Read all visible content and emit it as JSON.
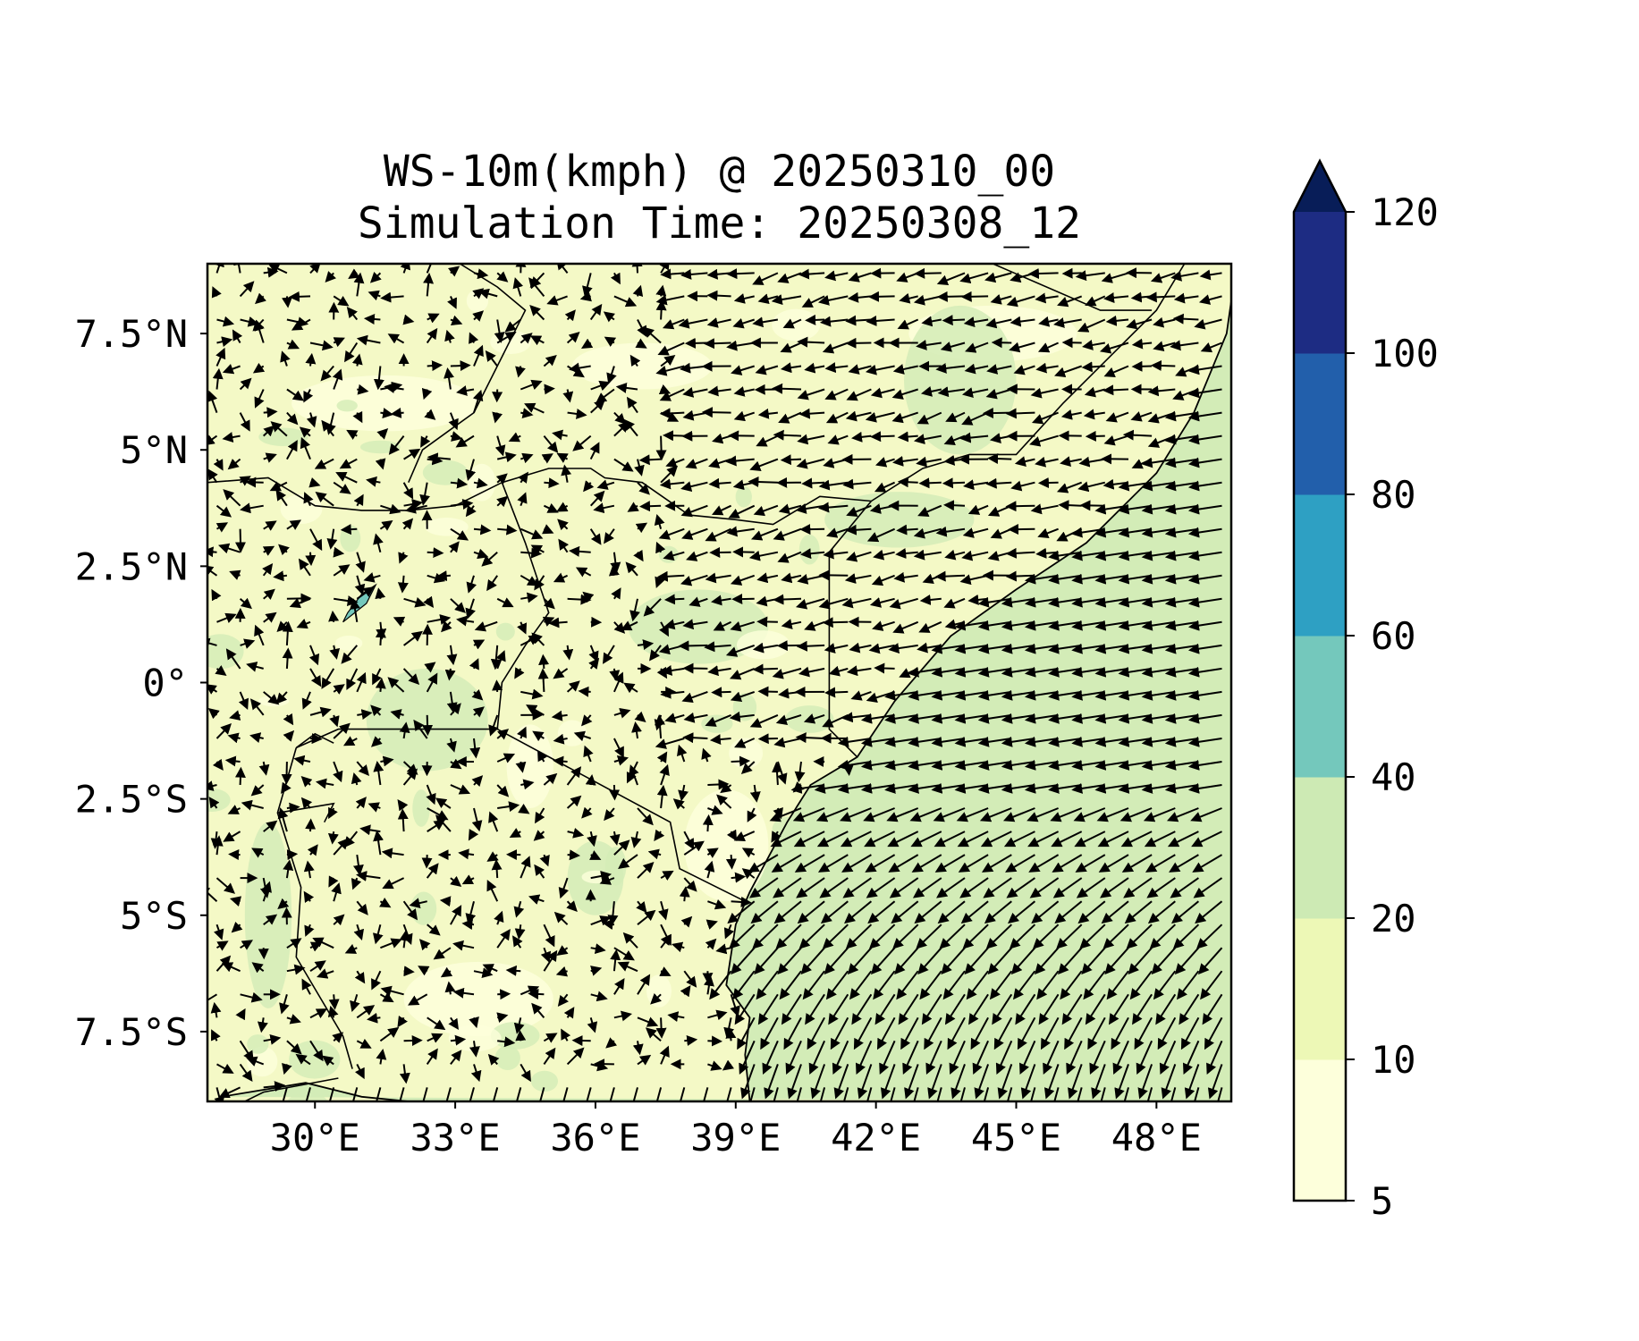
{
  "title": {
    "line1": "WS-10m(kmph) @ 20250310_00",
    "line2": "Simulation Time: 20250308_12"
  },
  "map": {
    "lon_range": [
      27.7,
      49.6
    ],
    "lat_range": [
      -9,
      9
    ],
    "x_ticks": [
      30,
      33,
      36,
      39,
      42,
      45,
      48
    ],
    "x_tick_labels": [
      "30°E",
      "33°E",
      "36°E",
      "39°E",
      "42°E",
      "45°E",
      "48°E"
    ],
    "y_ticks": [
      7.5,
      5,
      2.5,
      0,
      -2.5,
      -5,
      -7.5
    ],
    "y_tick_labels": [
      "7.5°N",
      "5°N",
      "2.5°N",
      "0°",
      "2.5°S",
      "5°S",
      "7.5°S"
    ],
    "land_color": "#f4f9c6",
    "ocean_color": "#d3ecb7",
    "coastline": [
      [
        28.0,
        -8.9
      ],
      [
        29.8,
        -8.6
      ],
      [
        31.0,
        -8.9
      ],
      [
        32.0,
        -9.0
      ],
      [
        39.3,
        -9.0
      ],
      [
        39.2,
        -8.0
      ],
      [
        39.3,
        -7.2
      ],
      [
        38.8,
        -6.5
      ],
      [
        39.0,
        -5.2
      ],
      [
        39.3,
        -4.5
      ],
      [
        40.1,
        -3.0
      ],
      [
        40.6,
        -2.2
      ],
      [
        41.6,
        -1.6
      ],
      [
        42.4,
        -0.4
      ],
      [
        43.6,
        1.0
      ],
      [
        45.0,
        2.0
      ],
      [
        46.5,
        3.0
      ],
      [
        48.0,
        4.5
      ],
      [
        48.8,
        5.8
      ],
      [
        49.5,
        7.5
      ],
      [
        49.6,
        8.2
      ]
    ],
    "borders": [
      [
        [
          27.7,
          4.3
        ],
        [
          29.0,
          4.4
        ],
        [
          30.0,
          3.8
        ],
        [
          31.0,
          3.7
        ],
        [
          32.0,
          3.7
        ],
        [
          33.0,
          3.8
        ],
        [
          34.0,
          4.3
        ],
        [
          35.0,
          4.6
        ],
        [
          35.9,
          4.6
        ],
        [
          36.2,
          4.4
        ],
        [
          37.0,
          4.3
        ],
        [
          38.0,
          3.6
        ],
        [
          39.0,
          3.5
        ],
        [
          39.8,
          3.4
        ],
        [
          40.8,
          4.0
        ],
        [
          41.9,
          3.9
        ]
      ],
      [
        [
          41.9,
          3.9
        ],
        [
          41.0,
          2.8
        ],
        [
          41.0,
          -1.0
        ],
        [
          41.6,
          -1.6
        ]
      ],
      [
        [
          34.0,
          4.3
        ],
        [
          34.5,
          3.0
        ],
        [
          35.0,
          1.5
        ],
        [
          34.5,
          0.8
        ],
        [
          34.0,
          0.0
        ],
        [
          33.9,
          -1.0
        ]
      ],
      [
        [
          33.9,
          -1.0
        ],
        [
          37.6,
          -3.0
        ],
        [
          37.8,
          -4.0
        ],
        [
          39.2,
          -4.7
        ]
      ],
      [
        [
          33.9,
          -1.0
        ],
        [
          30.5,
          -1.0
        ],
        [
          29.6,
          -1.4
        ]
      ],
      [
        [
          41.9,
          3.9
        ],
        [
          43.0,
          4.6
        ],
        [
          44.0,
          4.9
        ],
        [
          45.0,
          4.9
        ],
        [
          46.0,
          6.0
        ],
        [
          47.0,
          7.0
        ],
        [
          48.0,
          8.0
        ],
        [
          48.6,
          9.0
        ]
      ],
      [
        [
          29.6,
          -1.4
        ],
        [
          29.2,
          -2.8
        ],
        [
          29.7,
          -4.4
        ],
        [
          29.6,
          -5.9
        ],
        [
          30.6,
          -7.6
        ],
        [
          30.8,
          -8.3
        ]
      ],
      [
        [
          29.6,
          -1.4
        ],
        [
          30.0,
          -1.1
        ],
        [
          30.4,
          -1.3
        ]
      ],
      [
        [
          29.2,
          -2.8
        ],
        [
          30.4,
          -2.6
        ],
        [
          30.2,
          -3.0
        ]
      ],
      [
        [
          32.0,
          4.3
        ],
        [
          32.3,
          5.0
        ],
        [
          33.4,
          5.8
        ],
        [
          34.0,
          7.0
        ],
        [
          34.5,
          8.0
        ],
        [
          33.9,
          8.5
        ],
        [
          33.1,
          9.0
        ]
      ],
      [
        [
          44.5,
          9.0
        ],
        [
          46.8,
          8.0
        ],
        [
          47.9,
          8.0
        ]
      ],
      [
        [
          30.5,
          -8.5
        ],
        [
          28.9,
          -8.8
        ],
        [
          28.5,
          -9.0
        ]
      ]
    ],
    "lake": [
      [
        30.6,
        1.3
      ],
      [
        31.1,
        1.7
      ],
      [
        31.3,
        2.1
      ],
      [
        31.0,
        1.9
      ],
      [
        30.7,
        1.5
      ]
    ]
  },
  "colorbar": {
    "bounds": [
      5,
      10,
      20,
      40,
      60,
      80,
      100,
      120
    ],
    "tick_labels": [
      "5",
      "10",
      "20",
      "40",
      "60",
      "80",
      "100",
      "120"
    ],
    "colors": [
      "#fdffdb",
      "#edf8b6",
      "#cdeab4",
      "#74c8bc",
      "#2ea0c3",
      "#225fab",
      "#1d2c83"
    ],
    "extend_color": "#081d58"
  }
}
